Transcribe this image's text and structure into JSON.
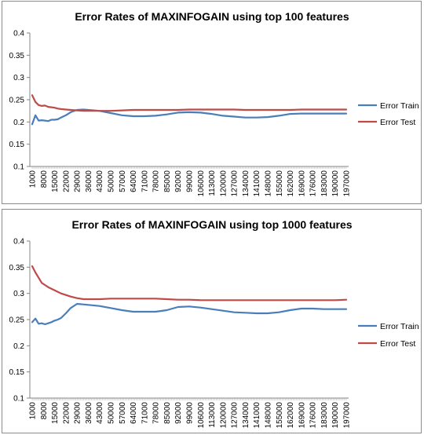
{
  "chart_data": [
    {
      "type": "line",
      "title": "Error Rates of MAXINFOGAIN using top 100 features",
      "xlabel": "",
      "ylabel": "",
      "ylim": [
        0.1,
        0.4
      ],
      "yticks": [
        "0.1",
        "0.15",
        "0.2",
        "0.25",
        "0.3",
        "0.35",
        "0.4"
      ],
      "x_tick_labels": [
        "1000",
        "8000",
        "15000",
        "22000",
        "29000",
        "36000",
        "43000",
        "50000",
        "57000",
        "64000",
        "71000",
        "78000",
        "85000",
        "92000",
        "99000",
        "106000",
        "113000",
        "120000",
        "127000",
        "134000",
        "141000",
        "148000",
        "155000",
        "162000",
        "169000",
        "176000",
        "183000",
        "190000",
        "197000"
      ],
      "x": [
        1000,
        3000,
        5000,
        7000,
        9000,
        11000,
        13000,
        15000,
        17000,
        19000,
        22000,
        25000,
        29000,
        33000,
        36000,
        43000,
        50000,
        57000,
        64000,
        71000,
        78000,
        85000,
        92000,
        99000,
        106000,
        113000,
        120000,
        127000,
        134000,
        141000,
        148000,
        155000,
        162000,
        169000,
        176000,
        183000,
        190000,
        197000
      ],
      "series": [
        {
          "name": "Error Train",
          "color": "#4a7ebb",
          "values": [
            0.195,
            0.215,
            0.203,
            0.204,
            0.203,
            0.202,
            0.205,
            0.205,
            0.206,
            0.21,
            0.215,
            0.222,
            0.227,
            0.228,
            0.227,
            0.225,
            0.22,
            0.215,
            0.213,
            0.213,
            0.214,
            0.217,
            0.221,
            0.222,
            0.221,
            0.218,
            0.214,
            0.212,
            0.21,
            0.21,
            0.211,
            0.214,
            0.218,
            0.219,
            0.219,
            0.219,
            0.219,
            0.219
          ]
        },
        {
          "name": "Error Test",
          "color": "#be4b48",
          "values": [
            0.26,
            0.245,
            0.238,
            0.236,
            0.237,
            0.234,
            0.233,
            0.232,
            0.23,
            0.229,
            0.228,
            0.227,
            0.226,
            0.225,
            0.225,
            0.225,
            0.225,
            0.226,
            0.227,
            0.227,
            0.227,
            0.227,
            0.227,
            0.228,
            0.228,
            0.228,
            0.228,
            0.228,
            0.227,
            0.227,
            0.227,
            0.227,
            0.227,
            0.228,
            0.228,
            0.228,
            0.228,
            0.228
          ]
        }
      ],
      "legend_position": "right",
      "grid": false
    },
    {
      "type": "line",
      "title": "Error Rates of MAXINFOGAIN using top 1000 features",
      "xlabel": "",
      "ylabel": "",
      "ylim": [
        0.1,
        0.4
      ],
      "yticks": [
        "0.1",
        "0.15",
        "0.2",
        "0.25",
        "0.3",
        "0.35",
        "0.4"
      ],
      "x_tick_labels": [
        "1000",
        "8000",
        "15000",
        "22000",
        "29000",
        "36000",
        "43000",
        "50000",
        "57000",
        "64000",
        "71000",
        "78000",
        "85000",
        "92000",
        "99000",
        "106000",
        "113000",
        "120000",
        "127000",
        "134000",
        "141000",
        "148000",
        "155000",
        "162000",
        "169000",
        "176000",
        "183000",
        "190000",
        "197000"
      ],
      "x": [
        1000,
        3000,
        5000,
        7000,
        9000,
        11000,
        13000,
        15000,
        17000,
        19000,
        22000,
        25000,
        29000,
        33000,
        36000,
        43000,
        50000,
        57000,
        64000,
        71000,
        78000,
        85000,
        92000,
        99000,
        106000,
        113000,
        120000,
        127000,
        134000,
        141000,
        148000,
        155000,
        162000,
        169000,
        176000,
        183000,
        190000,
        197000
      ],
      "series": [
        {
          "name": "Error Train",
          "color": "#4a7ebb",
          "values": [
            0.245,
            0.252,
            0.242,
            0.243,
            0.241,
            0.243,
            0.245,
            0.248,
            0.25,
            0.253,
            0.262,
            0.272,
            0.28,
            0.279,
            0.278,
            0.276,
            0.272,
            0.268,
            0.265,
            0.265,
            0.265,
            0.268,
            0.274,
            0.275,
            0.273,
            0.27,
            0.267,
            0.264,
            0.263,
            0.262,
            0.262,
            0.264,
            0.268,
            0.271,
            0.271,
            0.27,
            0.27,
            0.27
          ]
        },
        {
          "name": "Error Test",
          "color": "#be4b48",
          "values": [
            0.352,
            0.34,
            0.33,
            0.32,
            0.316,
            0.312,
            0.309,
            0.306,
            0.303,
            0.3,
            0.297,
            0.294,
            0.291,
            0.289,
            0.289,
            0.289,
            0.29,
            0.29,
            0.29,
            0.29,
            0.29,
            0.289,
            0.288,
            0.288,
            0.287,
            0.287,
            0.287,
            0.287,
            0.287,
            0.287,
            0.287,
            0.287,
            0.287,
            0.287,
            0.287,
            0.287,
            0.287,
            0.288
          ]
        }
      ],
      "legend_position": "right",
      "grid": false
    }
  ]
}
